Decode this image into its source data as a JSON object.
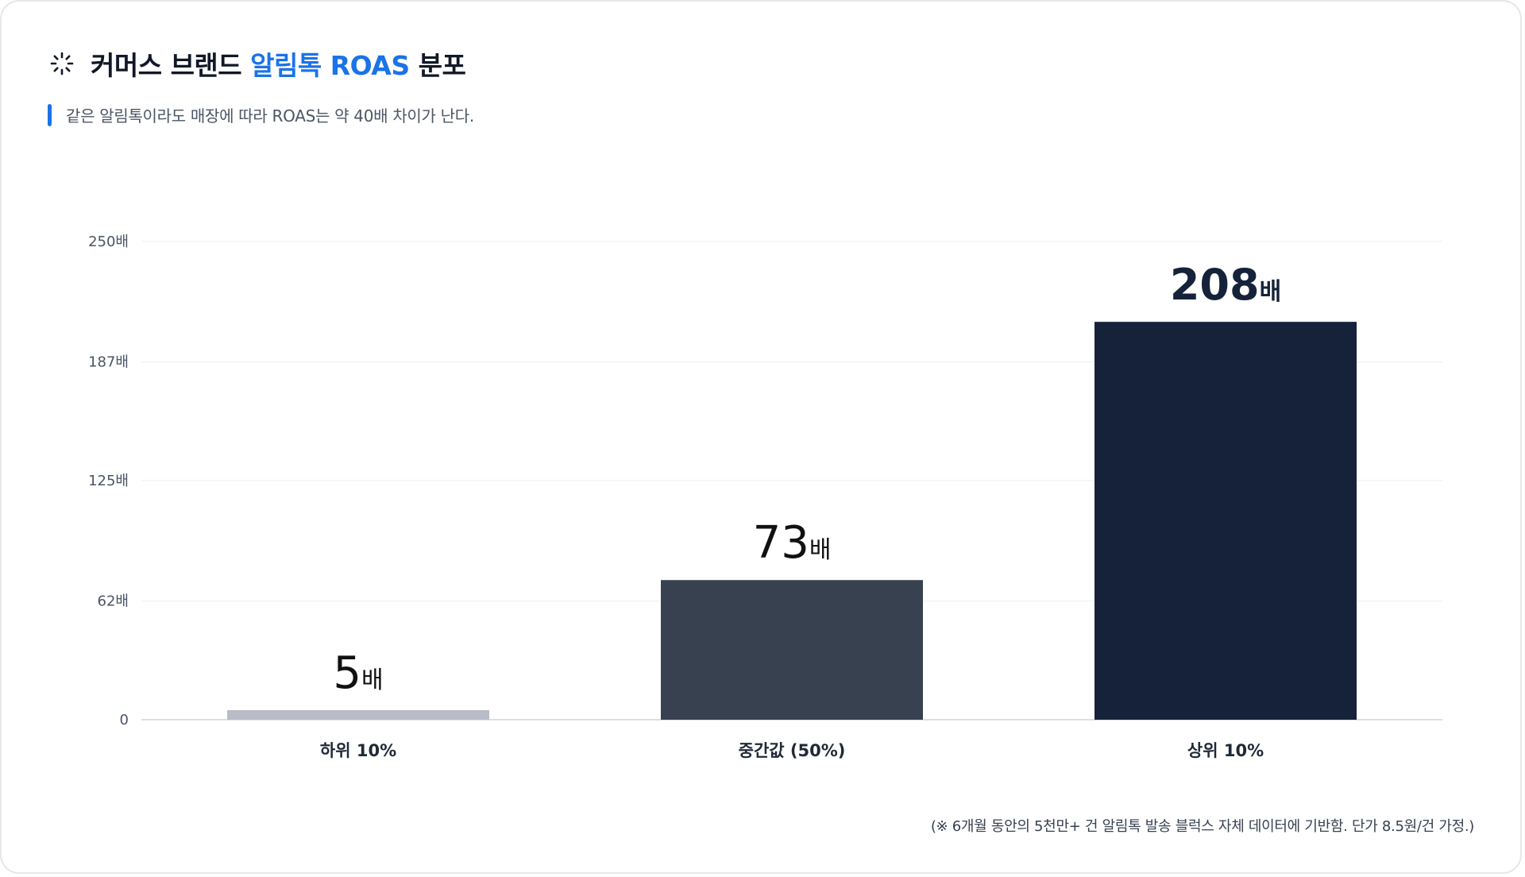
{
  "header": {
    "title_prefix": "커머스 브랜드 ",
    "title_accent": "알림톡 ROAS",
    "title_suffix": " 분포",
    "icon": "spinner-icon",
    "subtitle": "같은 알림톡이라도 매장에 따라 ROAS는 약 40배 차이가 난다."
  },
  "colors": {
    "accent": "#1a73e8",
    "bar_low": "#b9bcc6",
    "bar_mid": "#37414f",
    "bar_high": "#16223a"
  },
  "chart_data": {
    "type": "bar",
    "categories": [
      "하위 10%",
      "중간값 (50%)",
      "상위 10%"
    ],
    "values": [
      5,
      73,
      208
    ],
    "value_labels": [
      {
        "number": "5",
        "unit": "배"
      },
      {
        "number": "73",
        "unit": "배"
      },
      {
        "number": "208",
        "unit": "배"
      }
    ],
    "yticks": [
      0,
      62,
      125,
      187,
      250
    ],
    "ytick_labels": [
      "0",
      "62배",
      "125배",
      "187배",
      "250배"
    ],
    "ylim": [
      0,
      250
    ],
    "grid": true,
    "xlabel": "",
    "ylabel": ""
  },
  "footnote": "(※ 6개월 동안의 5천만+ 건 알림톡 발송 블럭스 자체 데이터에 기반함. 단가 8.5원/건 가정.)"
}
